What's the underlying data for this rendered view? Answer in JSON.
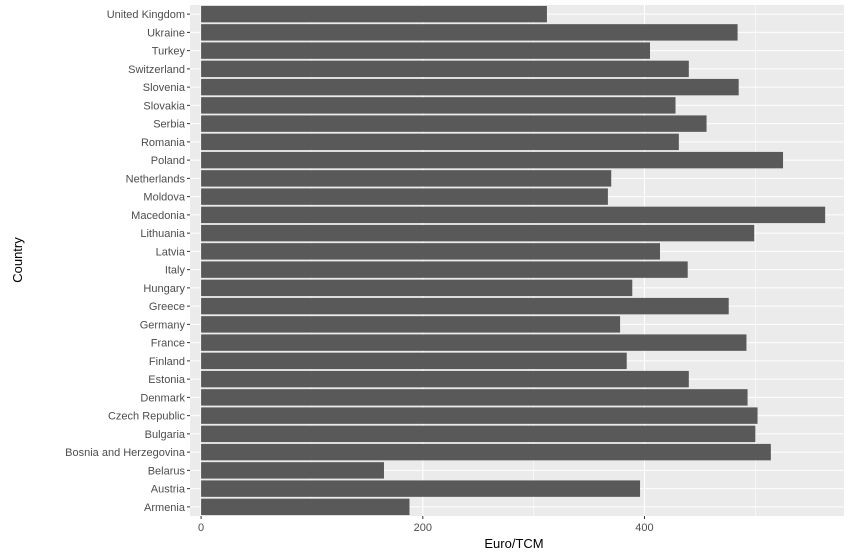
{
  "chart_data": {
    "type": "bar",
    "orientation": "horizontal",
    "xlabel": "Euro/TCM",
    "ylabel": "Country",
    "xlim": [
      -10,
      580
    ],
    "x_ticks": [
      0,
      200,
      400
    ],
    "grid": true,
    "categories": [
      "United Kingdom",
      "Ukraine",
      "Turkey",
      "Switzerland",
      "Slovenia",
      "Slovakia",
      "Serbia",
      "Romania",
      "Poland",
      "Netherlands",
      "Moldova",
      "Macedonia",
      "Lithuania",
      "Latvia",
      "Italy",
      "Hungary",
      "Greece",
      "Germany",
      "France",
      "Finland",
      "Estonia",
      "Denmark",
      "Czech Republic",
      "Bulgaria",
      "Bosnia and Herzegovina",
      "Belarus",
      "Austria",
      "Armenia"
    ],
    "values": [
      312,
      484,
      405,
      440,
      485,
      428,
      456,
      431,
      525,
      370,
      367,
      563,
      499,
      414,
      439,
      389,
      476,
      378,
      492,
      384,
      440,
      493,
      502,
      500,
      514,
      165,
      396,
      188
    ],
    "colors": {
      "bar": "#595959",
      "panel": "#ebebeb",
      "grid": "#ffffff"
    }
  }
}
